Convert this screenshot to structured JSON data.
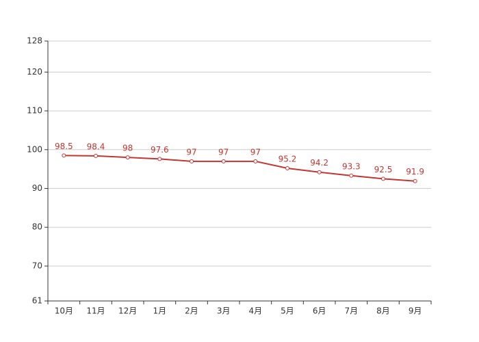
{
  "chart_data": {
    "type": "line",
    "categories": [
      "10月",
      "11月",
      "12月",
      "1月",
      "2月",
      "3月",
      "4月",
      "5月",
      "6月",
      "7月",
      "8月",
      "9月"
    ],
    "values": [
      98.5,
      98.4,
      98,
      97.6,
      97,
      97,
      97,
      95.2,
      94.2,
      93.3,
      92.5,
      91.9
    ],
    "color": "#c23531",
    "ylim": [
      61,
      128
    ],
    "yticks": [
      61,
      70,
      80,
      90,
      100,
      110,
      120,
      128
    ],
    "grid": true
  }
}
